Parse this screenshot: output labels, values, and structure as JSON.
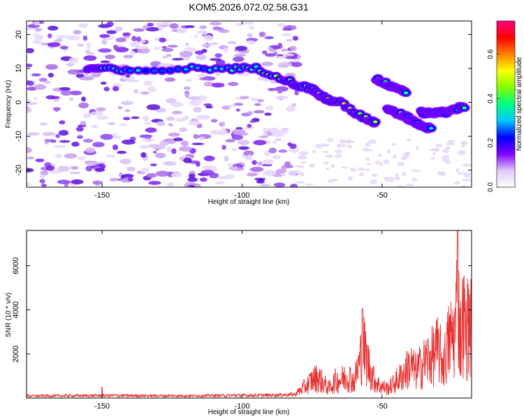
{
  "title": "KOM5.2026.072.02.58.G31",
  "chart_data": [
    {
      "type": "heatmap",
      "name": "spectrogram",
      "xlabel": "Height of straight line (km)",
      "ylabel": "Frequency (Hz)",
      "xlim": [
        -177,
        -18
      ],
      "ylim": [
        -25,
        24
      ],
      "xticks": [
        -150,
        -100,
        -50
      ],
      "yticks": [
        -20,
        -10,
        0,
        10,
        20
      ],
      "colorbar": {
        "label": "Normalized spectral amplitude",
        "ticks": [
          0.0,
          0.2,
          0.4,
          0.6
        ],
        "tick_labels": [
          "0.0",
          "0.2",
          "0.4",
          "0.6"
        ],
        "range": [
          0,
          0.75
        ],
        "colormap": [
          "#ffffff",
          "#e0c8f8",
          "#8000ff",
          "#0000ff",
          "#00c8ff",
          "#00ff80",
          "#80ff00",
          "#ffff00",
          "#ff8000",
          "#ff0000",
          "#ff0080"
        ]
      },
      "ridges": [
        {
          "x": [
            -155,
            -150,
            -140,
            -120,
            -105,
            -95,
            -85,
            -80,
            -75,
            -72,
            -70,
            -65,
            -60,
            -55,
            -52
          ],
          "y": [
            10,
            10,
            9,
            10,
            10,
            10,
            7,
            5,
            4,
            2,
            1,
            0,
            -3,
            -5,
            -6
          ],
          "amp": [
            0.35,
            0.4,
            0.3,
            0.3,
            0.35,
            0.4,
            0.45,
            0.5,
            0.55,
            0.6,
            0.65,
            0.55,
            0.5,
            0.5,
            0.45
          ]
        },
        {
          "x": [
            -52,
            -50,
            -47,
            -44,
            -41
          ],
          "y": [
            7,
            6,
            5,
            4,
            3
          ],
          "amp": [
            0.35,
            0.4,
            0.45,
            0.4,
            0.35
          ]
        },
        {
          "x": [
            -48,
            -45,
            -42,
            -40,
            -38,
            -35,
            -32
          ],
          "y": [
            -2,
            -3,
            -4,
            -5,
            -6,
            -7,
            -8
          ],
          "amp": [
            0.35,
            0.45,
            0.5,
            0.45,
            0.4,
            0.4,
            0.35
          ]
        },
        {
          "x": [
            -36,
            -33,
            -30,
            -27,
            -24,
            -20
          ],
          "y": [
            -3,
            -3,
            -3,
            -3,
            -2,
            -1
          ],
          "amp": [
            0.3,
            0.35,
            0.35,
            0.4,
            0.4,
            0.45
          ]
        }
      ],
      "noise_region_x": [
        -177,
        -80
      ]
    },
    {
      "type": "line",
      "name": "snr",
      "xlabel": "Height of straight line (km)",
      "ylabel": "SNR (10 * v/v)",
      "xlim": [
        -177,
        -18
      ],
      "ylim": [
        0,
        7600
      ],
      "xticks": [
        -150,
        -100,
        -50
      ],
      "yticks": [
        2000,
        4000,
        6000
      ],
      "color": "#e83030",
      "envelope": {
        "x": [
          -177,
          -150,
          -120,
          -90,
          -81,
          -79,
          -77,
          -75,
          -73,
          -71,
          -69,
          -67,
          -64,
          -62,
          -60,
          -58,
          -57,
          -55,
          -53,
          -51,
          -48,
          -46,
          -44,
          -42,
          -40,
          -38,
          -36,
          -34,
          -32,
          -30,
          -28,
          -26,
          -24,
          -23,
          -22,
          -21,
          -20,
          -19,
          -18
        ],
        "y": [
          120,
          140,
          130,
          160,
          200,
          600,
          900,
          1300,
          1500,
          1100,
          700,
          1200,
          1400,
          1600,
          1200,
          2600,
          3900,
          2500,
          1400,
          900,
          700,
          1000,
          1400,
          1800,
          2400,
          1900,
          2300,
          2800,
          3000,
          3500,
          2500,
          4200,
          4700,
          7500,
          4200,
          5800,
          4600,
          5600,
          4900
        ]
      },
      "spikes": [
        {
          "x": -150,
          "y": 500
        },
        {
          "x": -57,
          "y": 4050
        },
        {
          "x": -23,
          "y": 7600
        }
      ]
    }
  ]
}
